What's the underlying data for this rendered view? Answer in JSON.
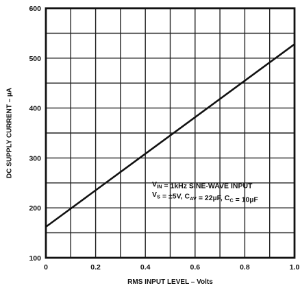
{
  "chart_data": {
    "type": "line",
    "title": "",
    "xlabel": "RMS INPUT LEVEL – Volts",
    "ylabel": "DC SUPPLY CURRENT – µA",
    "xlim": [
      0,
      1.0
    ],
    "ylim": [
      100,
      600
    ],
    "x_ticks": [
      0,
      0.2,
      0.4,
      0.6,
      0.8,
      1.0
    ],
    "x_tick_labels": [
      "0",
      "0.2",
      "0.4",
      "0.6",
      "0.8",
      "1.0"
    ],
    "y_ticks": [
      100,
      200,
      300,
      400,
      500,
      600
    ],
    "y_tick_labels": [
      "100",
      "200",
      "300",
      "400",
      "500",
      "600"
    ],
    "grid": true,
    "grid_x_step": 0.1,
    "grid_y_step": 50,
    "series": [
      {
        "x": [
          0,
          1.0
        ],
        "y": [
          162,
          528
        ]
      }
    ],
    "annotations": [
      {
        "parts": [
          {
            "text": "V"
          },
          {
            "text": "IN",
            "sub": true
          },
          {
            "text": " = 1kHz SINE-WAVE INPUT"
          }
        ]
      },
      {
        "parts": [
          {
            "text": "V"
          },
          {
            "text": "S",
            "sub": true
          },
          {
            "text": " = ±5V, C"
          },
          {
            "text": "AV",
            "sub": true
          },
          {
            "text": " = 22µF, C"
          },
          {
            "text": "C",
            "sub": true
          },
          {
            "text": " = 10µF"
          }
        ]
      }
    ],
    "colors": {
      "line": "#111111",
      "grid": "#222222",
      "frame": "#111111",
      "background": "#ffffff"
    }
  }
}
